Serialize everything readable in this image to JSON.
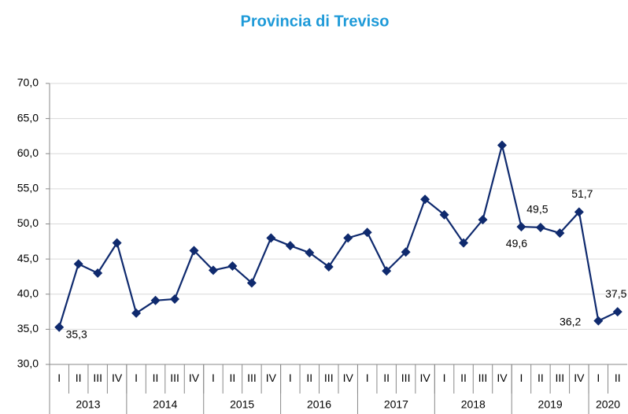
{
  "chart_data": {
    "type": "line",
    "title": "Provincia di Treviso",
    "categories": [
      "I",
      "II",
      "III",
      "IV",
      "I",
      "II",
      "III",
      "IV",
      "I",
      "II",
      "III",
      "IV",
      "I",
      "II",
      "III",
      "IV",
      "I",
      "II",
      "III",
      "IV",
      "I",
      "II",
      "III",
      "IV",
      "I",
      "II",
      "III",
      "IV",
      "I",
      "II"
    ],
    "groups": [
      "2013",
      "2014",
      "2015",
      "2016",
      "2017",
      "2018",
      "2019",
      "2020"
    ],
    "series": [
      {
        "color": "#0f2a6e",
        "values": [
          35.3,
          44.3,
          43.0,
          47.3,
          37.3,
          39.1,
          39.3,
          46.2,
          43.4,
          44.0,
          41.6,
          48.0,
          46.9,
          45.9,
          43.9,
          48.0,
          48.8,
          43.3,
          46.0,
          53.5,
          51.3,
          47.3,
          50.6,
          61.2,
          49.6,
          49.5,
          48.7,
          51.7,
          36.2,
          37.5
        ],
        "value_labels": [
          "35,3",
          null,
          null,
          null,
          null,
          null,
          null,
          null,
          null,
          null,
          null,
          null,
          null,
          null,
          null,
          null,
          null,
          null,
          null,
          null,
          null,
          null,
          null,
          null,
          "49,6",
          "49,5",
          null,
          "51,7",
          "36,2",
          "37,5"
        ]
      }
    ],
    "ylim": [
      30,
      70
    ],
    "yticks": [
      {
        "value": 30,
        "label": "30,0"
      },
      {
        "value": 35,
        "label": "35,0"
      },
      {
        "value": 40,
        "label": "40,0"
      },
      {
        "value": 45,
        "label": "45,0"
      },
      {
        "value": 50,
        "label": "50,0"
      },
      {
        "value": 55,
        "label": "55,0"
      },
      {
        "value": 60,
        "label": "60,0"
      },
      {
        "value": 65,
        "label": "65,0"
      },
      {
        "value": 70,
        "label": "70,0"
      }
    ],
    "grid": true
  }
}
